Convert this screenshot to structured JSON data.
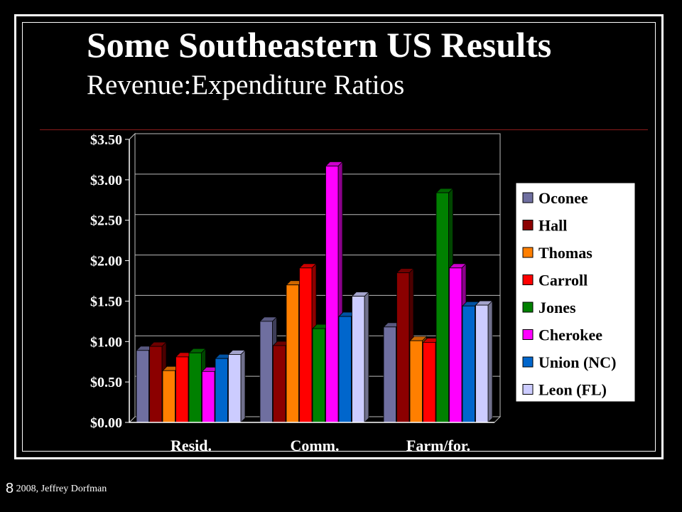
{
  "slide": {
    "title": "Some Southeastern US Results",
    "subtitle": "Revenue:Expenditure Ratios",
    "footer_number": "8",
    "footer_text": " 2008, Jeffrey Dorfman"
  },
  "chart_data": {
    "type": "bar",
    "categories": [
      "Resid.",
      "Comm.",
      "Farm/for."
    ],
    "ylim": [
      0,
      3.5
    ],
    "yticks": [
      0,
      0.5,
      1.0,
      1.5,
      2.0,
      2.5,
      3.0,
      3.5
    ],
    "ytick_labels": [
      "$0.00",
      "$0.50",
      "$1.00",
      "$1.50",
      "$2.00",
      "$2.50",
      "$3.00",
      "$3.50"
    ],
    "grid": true,
    "legend_position": "right",
    "series": [
      {
        "name": "Oconee",
        "color": "#6f6fa0",
        "values": [
          0.89,
          1.25,
          1.18
        ]
      },
      {
        "name": "Hall",
        "color": "#8b0000",
        "values": [
          0.94,
          0.95,
          1.85
        ]
      },
      {
        "name": "Thomas",
        "color": "#ff7f00",
        "values": [
          0.64,
          1.7,
          1.01
        ]
      },
      {
        "name": "Carroll",
        "color": "#ff0000",
        "values": [
          0.81,
          1.91,
          0.99
        ]
      },
      {
        "name": "Jones",
        "color": "#008000",
        "values": [
          0.86,
          1.16,
          2.84
        ]
      },
      {
        "name": "Cherokee",
        "color": "#ff00ff",
        "values": [
          0.63,
          3.17,
          1.91
        ]
      },
      {
        "name": "Union (NC)",
        "color": "#0066cc",
        "values": [
          0.79,
          1.31,
          1.44
        ]
      },
      {
        "name": "Leon (FL)",
        "color": "#ccccff",
        "values": [
          0.84,
          1.56,
          1.45
        ]
      }
    ]
  }
}
